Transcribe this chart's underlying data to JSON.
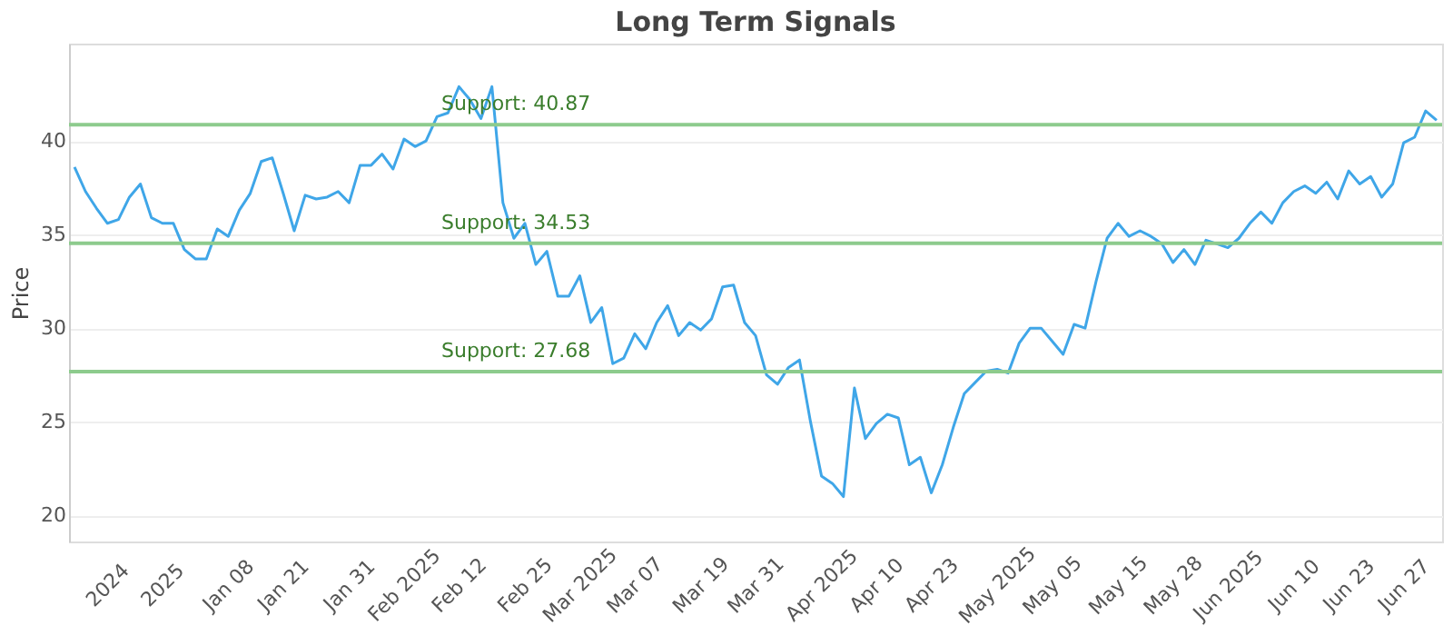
{
  "chart_data": {
    "type": "line",
    "title": "Long Term Signals",
    "ylabel": "Price",
    "categories": [
      null,
      null,
      null,
      "2024",
      null,
      null,
      null,
      null,
      "2025",
      null,
      null,
      null,
      null,
      null,
      "Jan 08",
      null,
      null,
      null,
      null,
      "Jan 21",
      null,
      null,
      null,
      null,
      null,
      "Jan 31",
      null,
      null,
      null,
      null,
      "Feb 2025",
      null,
      null,
      null,
      null,
      "Feb 12",
      null,
      null,
      null,
      null,
      null,
      "Feb 25",
      null,
      null,
      null,
      null,
      "Mar 2025",
      null,
      null,
      null,
      null,
      "Mar 07",
      null,
      null,
      null,
      null,
      null,
      "Mar 19",
      null,
      null,
      null,
      null,
      "Mar 31",
      null,
      null,
      null,
      null,
      null,
      "Apr 2025",
      null,
      null,
      null,
      null,
      "Apr 10",
      null,
      null,
      null,
      null,
      "Apr 23",
      null,
      null,
      null,
      null,
      null,
      "May 2025",
      null,
      null,
      null,
      null,
      "May 05",
      null,
      null,
      null,
      null,
      null,
      "May 15",
      null,
      null,
      null,
      null,
      "May 28",
      null,
      null,
      null,
      null,
      "Jun 2025",
      null,
      null,
      null,
      null,
      null,
      "Jun 10",
      null,
      null,
      null,
      null,
      "Jun 23",
      null,
      null,
      null,
      null,
      "Jun 27",
      null,
      null,
      null
    ],
    "series": [
      {
        "color": "#3fa6e8",
        "values": [
          38.6,
          37.3,
          36.4,
          35.6,
          35.8,
          37.0,
          37.7,
          35.9,
          35.6,
          35.6,
          34.2,
          33.7,
          33.7,
          35.3,
          34.9,
          36.3,
          37.2,
          38.9,
          39.1,
          37.2,
          35.2,
          37.1,
          36.9,
          37.0,
          37.3,
          36.7,
          38.7,
          38.7,
          39.3,
          38.5,
          40.1,
          39.7,
          40.0,
          41.3,
          41.5,
          42.9,
          42.2,
          41.2,
          42.9,
          36.7,
          34.8,
          35.6,
          33.4,
          34.1,
          31.7,
          31.7,
          32.8,
          30.3,
          31.1,
          28.1,
          28.4,
          29.7,
          28.9,
          30.3,
          31.2,
          29.6,
          30.3,
          29.9,
          30.5,
          32.2,
          32.3,
          30.3,
          29.6,
          27.5,
          27.0,
          27.9,
          28.3,
          25.0,
          22.1,
          21.7,
          21.0,
          26.8,
          24.1,
          24.9,
          25.4,
          25.2,
          22.7,
          23.1,
          21.2,
          22.7,
          24.7,
          26.5,
          27.1,
          27.7,
          27.8,
          27.6,
          29.2,
          30.0,
          30.0,
          29.3,
          28.6,
          30.2,
          30.0,
          32.5,
          34.8,
          35.6,
          34.9,
          35.2,
          34.9,
          34.5,
          33.5,
          34.2,
          33.4,
          34.7,
          34.5,
          34.3,
          34.8,
          35.6,
          36.2,
          35.6,
          36.7,
          37.3,
          37.6,
          37.2,
          37.8,
          36.9,
          38.4,
          37.7,
          38.1,
          37.0,
          37.7,
          39.9,
          40.2,
          41.6,
          41.1
        ]
      }
    ],
    "ylim": [
      18.6,
      45.2
    ],
    "yticks": [
      20,
      25,
      30,
      35,
      40
    ],
    "grid": "y",
    "marker": "none",
    "line_style": "solid",
    "ref_lines": [
      {
        "axis": "y",
        "value": 40.87,
        "label": "Support: 40.87",
        "color": "#8dcb8d"
      },
      {
        "axis": "y",
        "value": 34.53,
        "label": "Support: 34.53",
        "color": "#8dcb8d"
      },
      {
        "axis": "y",
        "value": 27.68,
        "label": "Support: 27.68",
        "color": "#8dcb8d"
      }
    ]
  }
}
